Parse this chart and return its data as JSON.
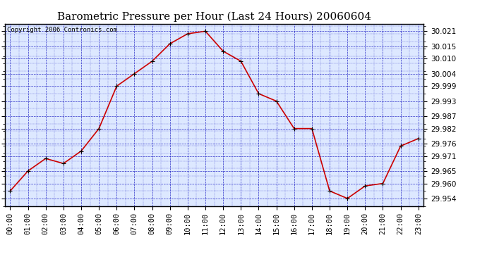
{
  "title": "Barometric Pressure per Hour (Last 24 Hours) 20060604",
  "copyright": "Copyright 2006 Contronics.com",
  "hours": [
    "00:00",
    "01:00",
    "02:00",
    "03:00",
    "04:00",
    "05:00",
    "06:00",
    "07:00",
    "08:00",
    "09:00",
    "10:00",
    "11:00",
    "12:00",
    "13:00",
    "14:00",
    "15:00",
    "16:00",
    "17:00",
    "18:00",
    "19:00",
    "20:00",
    "21:00",
    "22:00",
    "23:00"
  ],
  "values": [
    29.957,
    29.965,
    29.97,
    29.968,
    29.973,
    29.982,
    29.999,
    30.004,
    30.009,
    30.016,
    30.02,
    30.021,
    30.013,
    30.009,
    29.996,
    29.993,
    29.982,
    29.982,
    29.957,
    29.954,
    29.959,
    29.96,
    29.975,
    29.978
  ],
  "yticks": [
    29.954,
    29.96,
    29.965,
    29.971,
    29.976,
    29.982,
    29.987,
    29.993,
    29.999,
    30.004,
    30.01,
    30.015,
    30.021
  ],
  "ylim_min": 29.951,
  "ylim_max": 30.024,
  "line_color": "#cc0000",
  "marker_color": "#000000",
  "bg_color": "#ffffff",
  "grid_color": "#0000bb",
  "title_fontsize": 11,
  "copyright_fontsize": 6.5,
  "tick_fontsize": 7.5,
  "plot_bg_color": "#dde8ff"
}
